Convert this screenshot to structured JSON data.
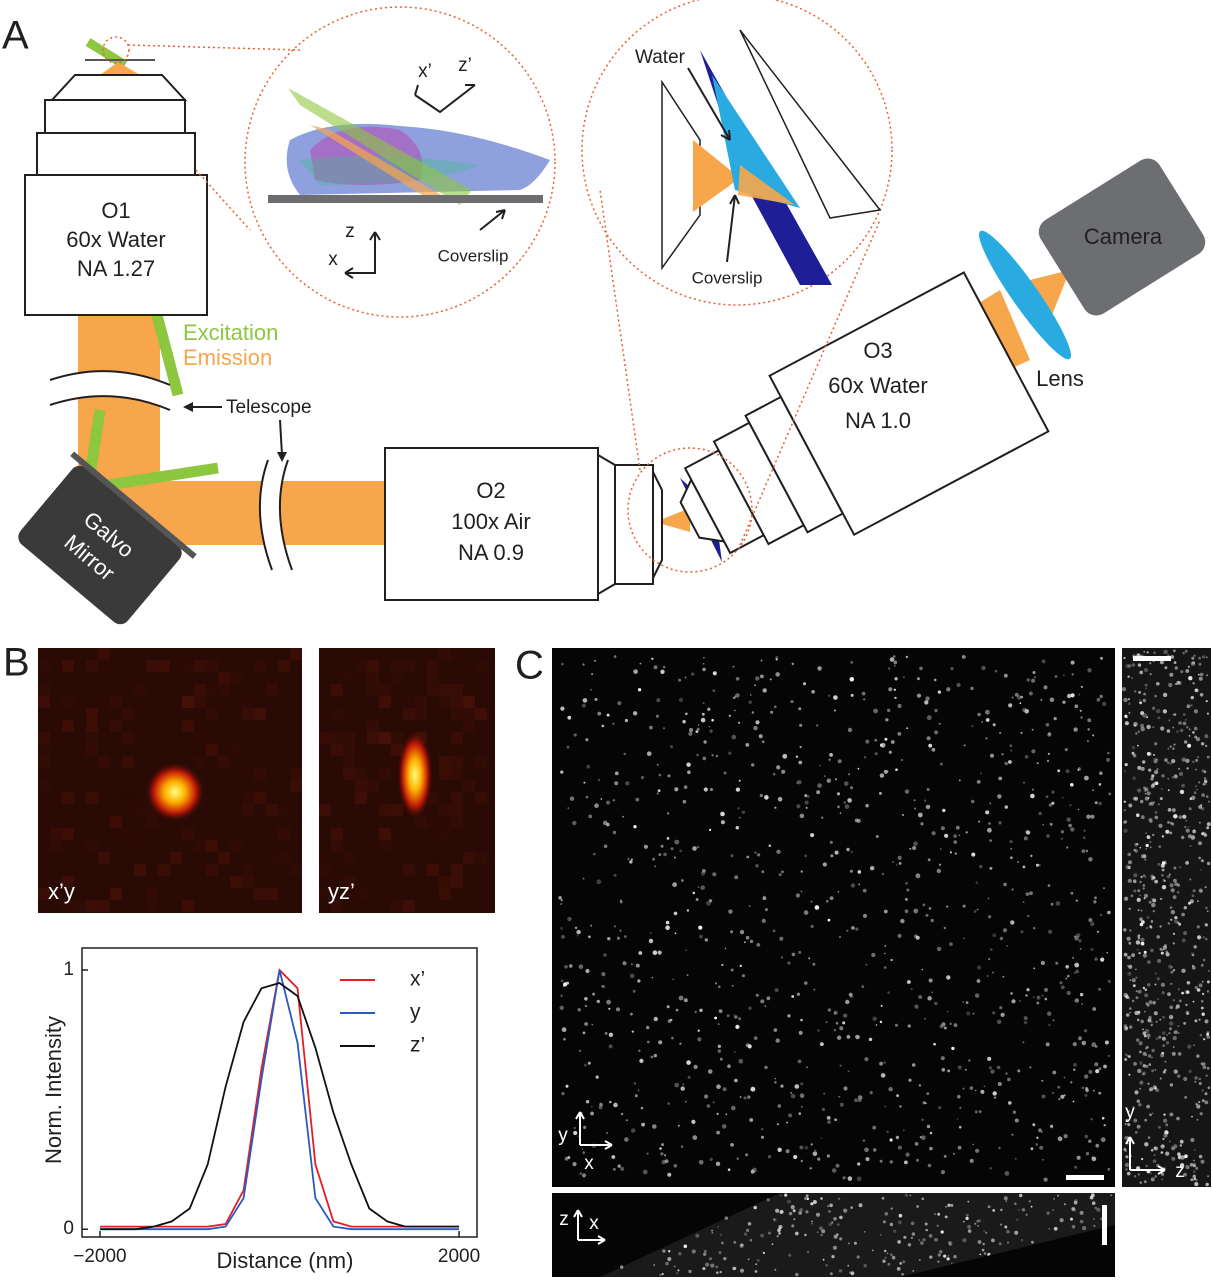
{
  "panels": {
    "a": "A",
    "b": "B",
    "c": "C"
  },
  "o1": {
    "name": "O1",
    "mag": "60x Water",
    "na": "NA 1.27"
  },
  "o2": {
    "name": "O2",
    "mag": "100x Air",
    "na": "NA 0.9"
  },
  "o3": {
    "name": "O3",
    "mag": "60x Water",
    "na": "NA 1.0"
  },
  "beam": {
    "excitation": "Excitation",
    "emission": "Emission",
    "telescope": "Telescope"
  },
  "galvo": {
    "line1": "Galvo",
    "line2": "Mirror"
  },
  "camera": "Camera",
  "lens": "Lens",
  "zoom1": {
    "x_prime": "x’",
    "z_prime": "z’",
    "z": "z",
    "x": "x",
    "coverslip": "Coverslip"
  },
  "zoom2": {
    "water": "Water",
    "coverslip": "Coverslip"
  },
  "psf_images": {
    "xy": "x’y",
    "yz": "yz’"
  },
  "panel_c_axes": {
    "main_y": "y",
    "main_x": "x",
    "side_y": "y",
    "side_z": "z",
    "bottom_z": "z",
    "bottom_x": "x"
  },
  "chart_data": {
    "type": "line",
    "x_label": "Distance (nm)",
    "y_label": "Norm. Intensity",
    "xlim": [
      -2200,
      2200
    ],
    "ylim": [
      -0.03,
      1.085
    ],
    "xticks": [
      {
        "value": -2000,
        "label": "−2000"
      },
      2000
    ],
    "yticks": [
      0,
      1
    ],
    "legend": "top-right",
    "x": [
      -2000,
      -1800,
      -1600,
      -1400,
      -1200,
      -1000,
      -800,
      -600,
      -400,
      -200,
      0,
      200,
      400,
      600,
      800,
      1000,
      1200,
      1400,
      1600,
      1800,
      2000
    ],
    "series": [
      {
        "name": "x’",
        "color": "#e31e26",
        "values": [
          0.01,
          0.01,
          0.01,
          0.01,
          0.01,
          0.01,
          0.01,
          0.02,
          0.15,
          0.62,
          1.0,
          0.93,
          0.25,
          0.03,
          0.01,
          0.01,
          0.01,
          0.01,
          0.01,
          0.01,
          0.01
        ]
      },
      {
        "name": "y",
        "color": "#2b59c3",
        "values": [
          0.0,
          0.0,
          0.0,
          0.0,
          0.0,
          0.0,
          0.0,
          0.01,
          0.12,
          0.58,
          1.0,
          0.72,
          0.12,
          0.01,
          0.0,
          0.0,
          0.0,
          0.0,
          0.0,
          0.0,
          0.0
        ]
      },
      {
        "name": "z’",
        "color": "#111111",
        "values": [
          0.0,
          0.0,
          0.0,
          0.01,
          0.03,
          0.08,
          0.25,
          0.55,
          0.8,
          0.93,
          0.95,
          0.9,
          0.7,
          0.45,
          0.25,
          0.08,
          0.03,
          0.01,
          0.01,
          0.01,
          0.01
        ]
      }
    ]
  }
}
